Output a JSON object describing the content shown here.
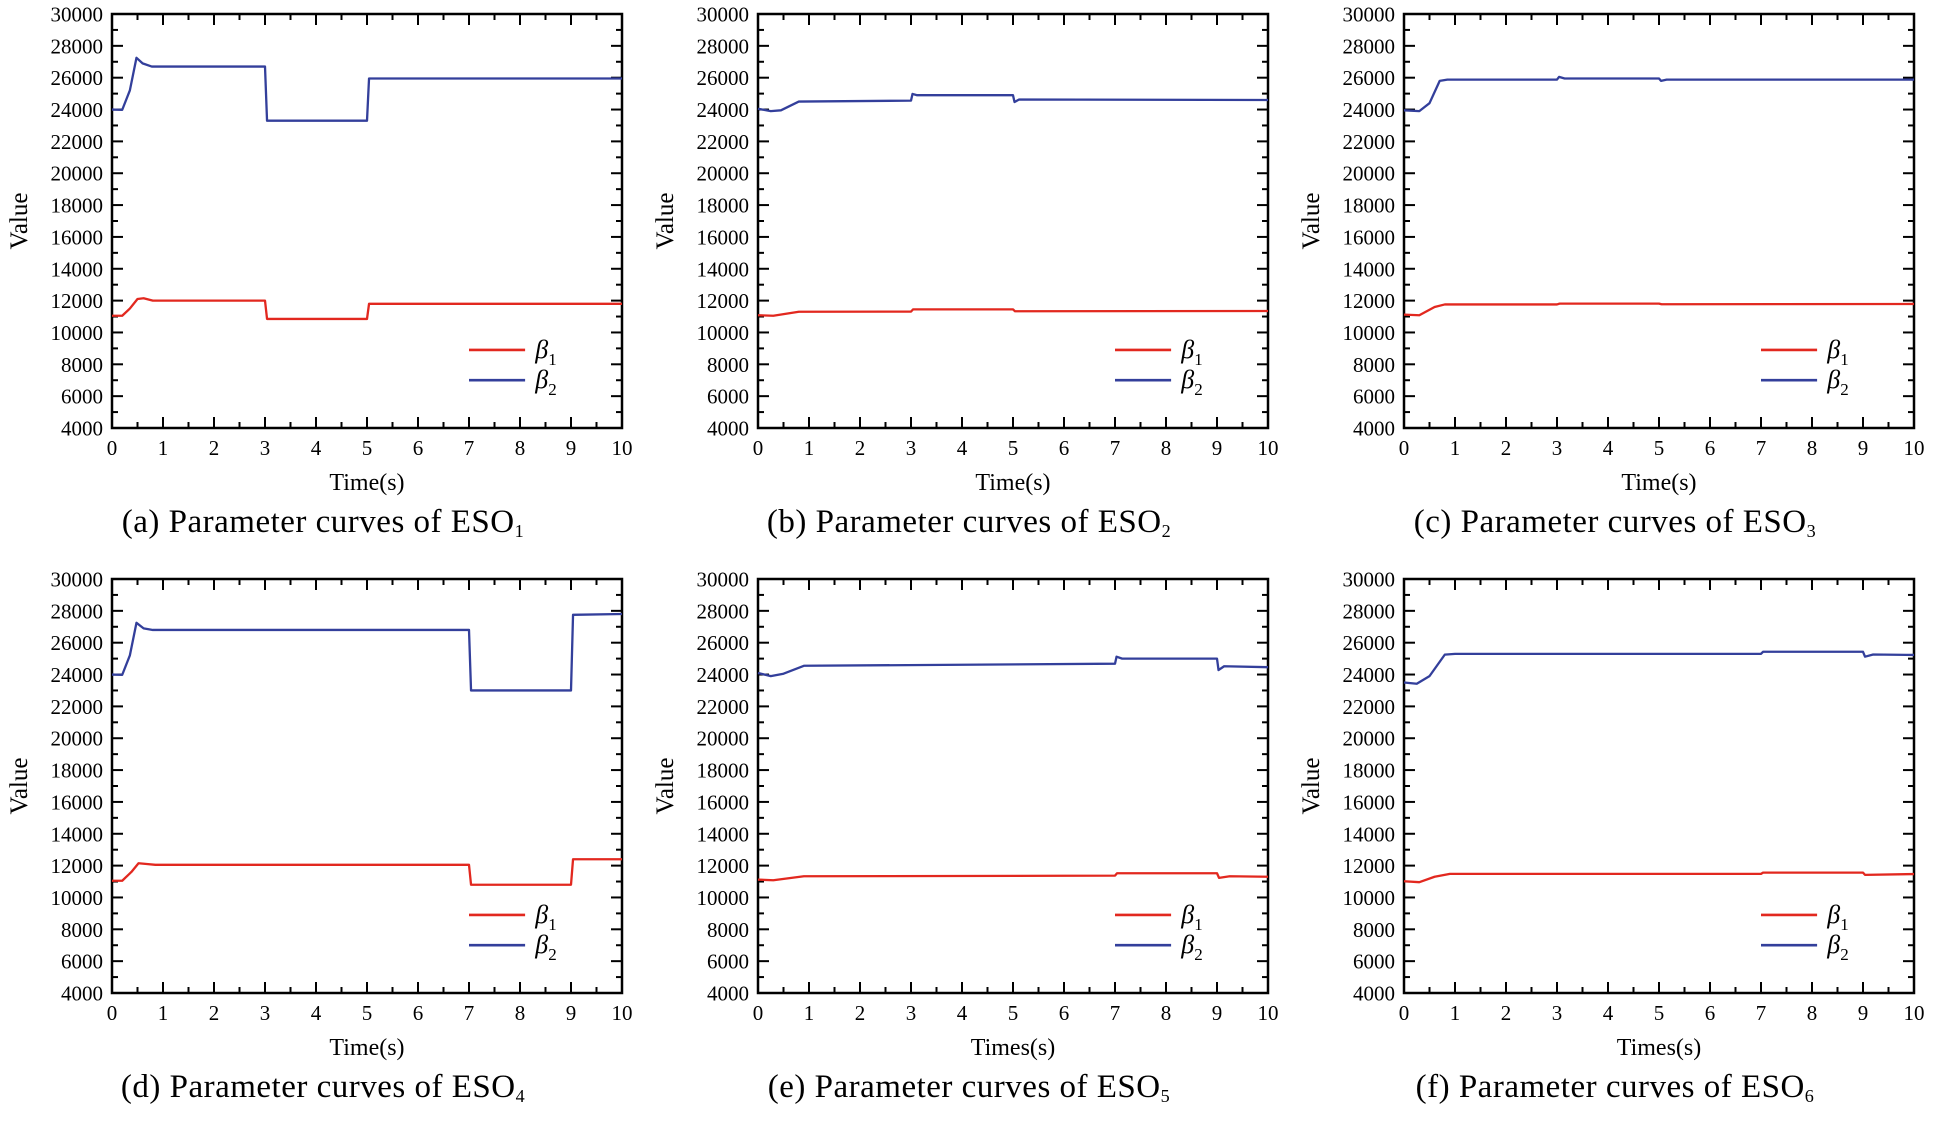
{
  "style": {
    "red": "#e2281f",
    "blue": "#333f9b",
    "axis_color": "#000000",
    "text_color": "#000000",
    "background": "#ffffff"
  },
  "chart_data": [
    {
      "id": "a",
      "type": "line",
      "caption_prefix": "(a) Parameter curves of ESO",
      "caption_sub": "1",
      "xlabel": "Time(s)",
      "ylabel": "Value",
      "xlim": [
        0,
        10
      ],
      "ylim": [
        4000,
        30000
      ],
      "x_tick_labels": [
        "0",
        "1",
        "2",
        "3",
        "4",
        "5",
        "6",
        "7",
        "8",
        "9",
        "10"
      ],
      "y_tick_labels": [
        "4000",
        "6000",
        "8000",
        "10000",
        "12000",
        "14000",
        "16000",
        "18000",
        "20000",
        "22000",
        "24000",
        "26000",
        "28000",
        "30000"
      ],
      "x_major_step": 1,
      "x_minor_step": 0.5,
      "y_major_step": 2000,
      "y_minor_step": 1000,
      "legend": [
        {
          "base": "β",
          "sub": "1",
          "color_key": "red"
        },
        {
          "base": "β",
          "sub": "2",
          "color_key": "blue"
        }
      ],
      "series": [
        {
          "name": "beta1",
          "color_key": "red",
          "points": [
            [
              0,
              11050
            ],
            [
              0.2,
              11050
            ],
            [
              0.35,
              11500
            ],
            [
              0.5,
              12100
            ],
            [
              0.62,
              12150
            ],
            [
              0.8,
              12000
            ],
            [
              3,
              12000
            ],
            [
              3.04,
              10850
            ],
            [
              5,
              10850
            ],
            [
              5.04,
              11800
            ],
            [
              10,
              11800
            ]
          ]
        },
        {
          "name": "beta2",
          "color_key": "blue",
          "points": [
            [
              0,
              24000
            ],
            [
              0.2,
              23980
            ],
            [
              0.35,
              25200
            ],
            [
              0.48,
              27250
            ],
            [
              0.6,
              26900
            ],
            [
              0.78,
              26700
            ],
            [
              3,
              26700
            ],
            [
              3.04,
              23300
            ],
            [
              5,
              23300
            ],
            [
              5.04,
              25950
            ],
            [
              10,
              25950
            ]
          ]
        }
      ]
    },
    {
      "id": "b",
      "type": "line",
      "caption_prefix": "(b) Parameter curves of ESO",
      "caption_sub": "2",
      "xlabel": "Time(s)",
      "ylabel": "Value",
      "xlim": [
        0,
        10
      ],
      "ylim": [
        4000,
        30000
      ],
      "x_tick_labels": [
        "0",
        "1",
        "2",
        "3",
        "4",
        "5",
        "6",
        "7",
        "8",
        "9",
        "10"
      ],
      "y_tick_labels": [
        "4000",
        "6000",
        "8000",
        "10000",
        "12000",
        "14000",
        "16000",
        "18000",
        "20000",
        "22000",
        "24000",
        "26000",
        "28000",
        "30000"
      ],
      "x_major_step": 1,
      "x_minor_step": 0.5,
      "y_major_step": 2000,
      "y_minor_step": 1000,
      "legend": [
        {
          "base": "β",
          "sub": "1",
          "color_key": "red"
        },
        {
          "base": "β",
          "sub": "2",
          "color_key": "blue"
        }
      ],
      "series": [
        {
          "name": "beta1",
          "color_key": "red",
          "points": [
            [
              0,
              11080
            ],
            [
              0.3,
              11050
            ],
            [
              0.8,
              11300
            ],
            [
              3,
              11310
            ],
            [
              3.04,
              11450
            ],
            [
              5,
              11450
            ],
            [
              5.04,
              11330
            ],
            [
              10,
              11350
            ]
          ]
        },
        {
          "name": "beta2",
          "color_key": "blue",
          "points": [
            [
              0,
              24050
            ],
            [
              0.25,
              23900
            ],
            [
              0.45,
              23950
            ],
            [
              0.8,
              24500
            ],
            [
              3,
              24560
            ],
            [
              3.03,
              24980
            ],
            [
              3.12,
              24900
            ],
            [
              5,
              24900
            ],
            [
              5.03,
              24470
            ],
            [
              5.12,
              24630
            ],
            [
              10,
              24600
            ]
          ]
        }
      ]
    },
    {
      "id": "c",
      "type": "line",
      "caption_prefix": "(c) Parameter curves of ESO",
      "caption_sub": "3",
      "xlabel": "Time(s)",
      "ylabel": "Value",
      "xlim": [
        0,
        10
      ],
      "ylim": [
        4000,
        30000
      ],
      "x_tick_labels": [
        "0",
        "1",
        "2",
        "3",
        "4",
        "5",
        "6",
        "7",
        "8",
        "9",
        "10"
      ],
      "y_tick_labels": [
        "4000",
        "6000",
        "8000",
        "10000",
        "12000",
        "14000",
        "16000",
        "18000",
        "20000",
        "22000",
        "24000",
        "26000",
        "28000",
        "30000"
      ],
      "x_major_step": 1,
      "x_minor_step": 0.5,
      "y_major_step": 2000,
      "y_minor_step": 1000,
      "legend": [
        {
          "base": "β",
          "sub": "1",
          "color_key": "red"
        },
        {
          "base": "β",
          "sub": "2",
          "color_key": "blue"
        }
      ],
      "series": [
        {
          "name": "beta1",
          "color_key": "red",
          "points": [
            [
              0,
              11120
            ],
            [
              0.3,
              11080
            ],
            [
              0.6,
              11600
            ],
            [
              0.8,
              11760
            ],
            [
              3,
              11760
            ],
            [
              3.05,
              11810
            ],
            [
              5,
              11810
            ],
            [
              5.05,
              11770
            ],
            [
              10,
              11790
            ]
          ]
        },
        {
          "name": "beta2",
          "color_key": "blue",
          "points": [
            [
              0,
              23950
            ],
            [
              0.3,
              23900
            ],
            [
              0.5,
              24400
            ],
            [
              0.7,
              25800
            ],
            [
              0.85,
              25880
            ],
            [
              3,
              25880
            ],
            [
              3.04,
              26050
            ],
            [
              3.15,
              25950
            ],
            [
              5,
              25950
            ],
            [
              5.04,
              25800
            ],
            [
              5.15,
              25880
            ],
            [
              10,
              25880
            ]
          ]
        }
      ]
    },
    {
      "id": "d",
      "type": "line",
      "caption_prefix": "(d) Parameter curves of ESO",
      "caption_sub": "4",
      "xlabel": "Time(s)",
      "ylabel": "Value",
      "xlim": [
        0,
        10
      ],
      "ylim": [
        4000,
        30000
      ],
      "x_tick_labels": [
        "0",
        "1",
        "2",
        "3",
        "4",
        "5",
        "6",
        "7",
        "8",
        "9",
        "10"
      ],
      "y_tick_labels": [
        "4000",
        "6000",
        "8000",
        "10000",
        "12000",
        "14000",
        "16000",
        "18000",
        "20000",
        "22000",
        "24000",
        "26000",
        "28000",
        "30000"
      ],
      "x_major_step": 1,
      "x_minor_step": 0.5,
      "y_major_step": 2000,
      "y_minor_step": 1000,
      "legend": [
        {
          "base": "β",
          "sub": "1",
          "color_key": "red"
        },
        {
          "base": "β",
          "sub": "2",
          "color_key": "blue"
        }
      ],
      "series": [
        {
          "name": "beta1",
          "color_key": "red",
          "points": [
            [
              0,
              11050
            ],
            [
              0.2,
              11050
            ],
            [
              0.38,
              11600
            ],
            [
              0.52,
              12150
            ],
            [
              0.68,
              12100
            ],
            [
              0.85,
              12050
            ],
            [
              7,
              12050
            ],
            [
              7.04,
              10800
            ],
            [
              9,
              10800
            ],
            [
              9.04,
              12400
            ],
            [
              10,
              12400
            ]
          ]
        },
        {
          "name": "beta2",
          "color_key": "blue",
          "points": [
            [
              0,
              24000
            ],
            [
              0.2,
              23980
            ],
            [
              0.35,
              25200
            ],
            [
              0.48,
              27250
            ],
            [
              0.62,
              26900
            ],
            [
              0.8,
              26800
            ],
            [
              7,
              26800
            ],
            [
              7.04,
              23000
            ],
            [
              9,
              23000
            ],
            [
              9.04,
              27750
            ],
            [
              10,
              27800
            ]
          ]
        }
      ]
    },
    {
      "id": "e",
      "type": "line",
      "caption_prefix": "(e) Parameter curves of ESO",
      "caption_sub": "5",
      "xlabel": "Times(s)",
      "ylabel": "Value",
      "xlim": [
        0,
        10
      ],
      "ylim": [
        4000,
        30000
      ],
      "x_tick_labels": [
        "0",
        "1",
        "2",
        "3",
        "4",
        "5",
        "6",
        "7",
        "8",
        "9",
        "10"
      ],
      "y_tick_labels": [
        "4000",
        "6000",
        "8000",
        "10000",
        "12000",
        "14000",
        "16000",
        "18000",
        "20000",
        "22000",
        "24000",
        "26000",
        "28000",
        "30000"
      ],
      "x_major_step": 1,
      "x_minor_step": 0.5,
      "y_major_step": 2000,
      "y_minor_step": 1000,
      "legend": [
        {
          "base": "β",
          "sub": "1",
          "color_key": "red"
        },
        {
          "base": "β",
          "sub": "2",
          "color_key": "blue"
        }
      ],
      "series": [
        {
          "name": "beta1",
          "color_key": "red",
          "points": [
            [
              0,
              11120
            ],
            [
              0.3,
              11080
            ],
            [
              0.9,
              11330
            ],
            [
              7,
              11370
            ],
            [
              7.04,
              11520
            ],
            [
              9,
              11520
            ],
            [
              9.04,
              11230
            ],
            [
              9.25,
              11330
            ],
            [
              10,
              11300
            ]
          ]
        },
        {
          "name": "beta2",
          "color_key": "blue",
          "points": [
            [
              0,
              24100
            ],
            [
              0.25,
              23900
            ],
            [
              0.5,
              24050
            ],
            [
              0.9,
              24550
            ],
            [
              7,
              24680
            ],
            [
              7.03,
              25120
            ],
            [
              7.14,
              25000
            ],
            [
              9,
              25000
            ],
            [
              9.03,
              24280
            ],
            [
              9.14,
              24520
            ],
            [
              10,
              24460
            ]
          ]
        }
      ]
    },
    {
      "id": "f",
      "type": "line",
      "caption_prefix": "(f) Parameter curves of ESO",
      "caption_sub": "6",
      "xlabel": "Times(s)",
      "ylabel": "Value",
      "xlim": [
        0,
        10
      ],
      "ylim": [
        4000,
        30000
      ],
      "x_tick_labels": [
        "0",
        "1",
        "2",
        "3",
        "4",
        "5",
        "6",
        "7",
        "8",
        "9",
        "10"
      ],
      "y_tick_labels": [
        "4000",
        "6000",
        "8000",
        "10000",
        "12000",
        "14000",
        "16000",
        "18000",
        "20000",
        "22000",
        "24000",
        "26000",
        "28000",
        "30000"
      ],
      "x_major_step": 1,
      "x_minor_step": 0.5,
      "y_major_step": 2000,
      "y_minor_step": 1000,
      "legend": [
        {
          "base": "β",
          "sub": "1",
          "color_key": "red"
        },
        {
          "base": "β",
          "sub": "2",
          "color_key": "blue"
        }
      ],
      "series": [
        {
          "name": "beta1",
          "color_key": "red",
          "points": [
            [
              0,
              11020
            ],
            [
              0.3,
              10960
            ],
            [
              0.6,
              11300
            ],
            [
              0.9,
              11480
            ],
            [
              7,
              11480
            ],
            [
              7.04,
              11560
            ],
            [
              9,
              11560
            ],
            [
              9.04,
              11420
            ],
            [
              10,
              11470
            ]
          ]
        },
        {
          "name": "beta2",
          "color_key": "blue",
          "points": [
            [
              0,
              23500
            ],
            [
              0.25,
              23420
            ],
            [
              0.5,
              23900
            ],
            [
              0.8,
              25250
            ],
            [
              1,
              25300
            ],
            [
              7,
              25300
            ],
            [
              7.04,
              25430
            ],
            [
              9,
              25430
            ],
            [
              9.04,
              25120
            ],
            [
              9.2,
              25260
            ],
            [
              10,
              25230
            ]
          ]
        }
      ]
    }
  ]
}
